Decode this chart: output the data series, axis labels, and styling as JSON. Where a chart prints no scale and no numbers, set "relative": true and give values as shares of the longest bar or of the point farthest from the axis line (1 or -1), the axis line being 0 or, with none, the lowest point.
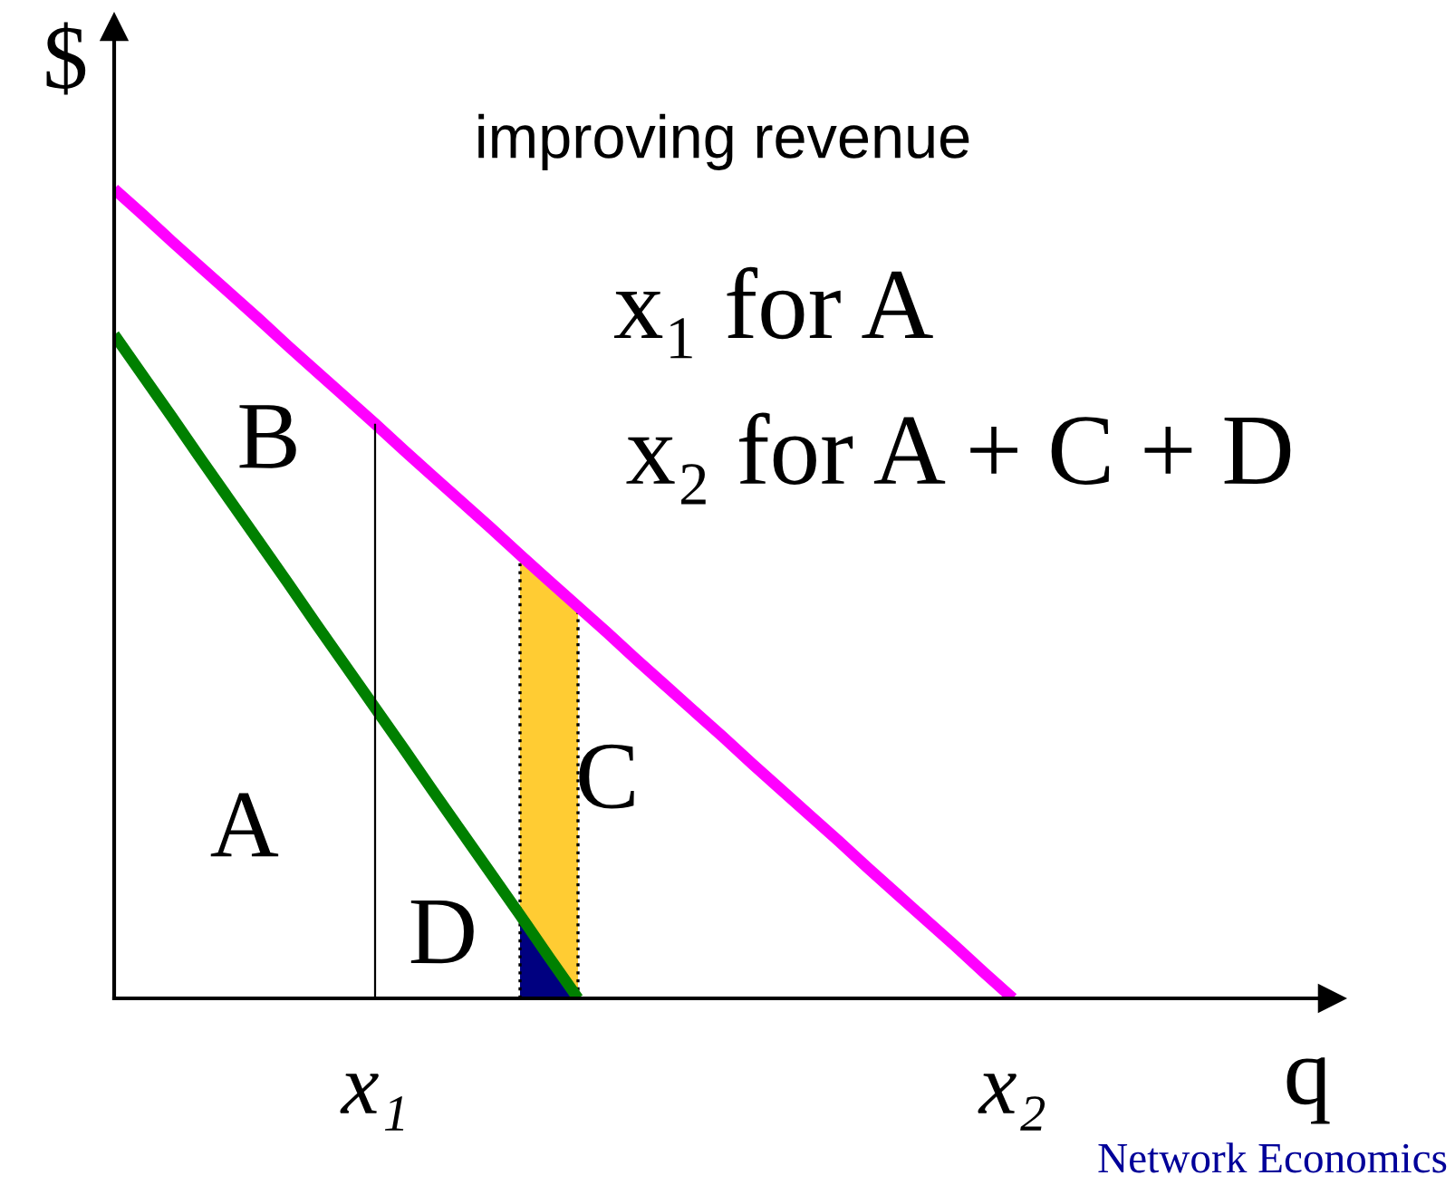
{
  "chart_data": {
    "type": "line",
    "relative": true,
    "title": "improving revenue",
    "xlabel": "q",
    "ylabel": "$",
    "categories": [
      null,
      null,
      null,
      null,
      null,
      null,
      null,
      null,
      null,
      "x₁",
      null,
      null,
      null,
      null,
      null,
      null,
      null,
      null,
      null,
      null,
      null,
      null,
      null,
      null,
      null,
      null,
      null,
      null,
      null,
      null,
      null,
      "x₂",
      null,
      null,
      null,
      null,
      null,
      null,
      null,
      null,
      null,
      null
    ],
    "series": [
      {
        "type": "area",
        "color": "#ffcc33",
        "line_style": "dotted",
        "values": [
          null,
          null,
          null,
          null,
          null,
          null,
          null,
          null,
          null,
          null,
          null,
          null,
          null,
          null,
          0.548,
          0.516,
          0.484,
          null,
          null,
          null,
          null,
          null,
          null,
          null,
          null,
          null,
          null,
          null,
          null,
          null,
          null,
          null,
          null,
          null,
          null,
          null,
          null,
          null,
          null,
          null,
          null,
          null
        ]
      },
      {
        "type": "area",
        "color": "#000080",
        "values": [
          null,
          null,
          null,
          null,
          null,
          null,
          null,
          null,
          null,
          null,
          null,
          null,
          null,
          null,
          0.103,
          0.051,
          0,
          null,
          null,
          null,
          null,
          null,
          null,
          null,
          null,
          null,
          null,
          null,
          null,
          null,
          null,
          null,
          null,
          null,
          null,
          null,
          null,
          null,
          null,
          null,
          null,
          null
        ]
      },
      {
        "color": "#ff00ff",
        "values": [
          1,
          0.968,
          0.935,
          0.903,
          0.871,
          0.839,
          0.806,
          0.774,
          0.742,
          0.71,
          0.677,
          0.645,
          0.613,
          0.581,
          0.548,
          0.516,
          0.484,
          0.452,
          0.419,
          0.387,
          0.355,
          0.323,
          0.29,
          0.258,
          0.226,
          0.194,
          0.161,
          0.129,
          0.097,
          0.065,
          0.032,
          0,
          null,
          null,
          null,
          null,
          null,
          null,
          null,
          null,
          null,
          null
        ]
      },
      {
        "color": "#008000",
        "values": [
          0.82,
          0.769,
          0.718,
          0.666,
          0.615,
          0.564,
          0.513,
          0.461,
          0.41,
          0.359,
          0.308,
          0.256,
          0.205,
          0.154,
          0.103,
          0.051,
          0,
          null,
          null,
          null,
          null,
          null,
          null,
          null,
          null,
          null,
          null,
          null,
          null,
          null,
          null,
          null,
          null,
          null,
          null,
          null,
          null,
          null,
          null,
          null,
          null,
          null
        ]
      },
      {
        "type": "bar",
        "color": "#000000",
        "values": [
          null,
          null,
          null,
          null,
          null,
          null,
          null,
          null,
          null,
          0.71,
          null,
          null,
          null,
          null,
          null,
          null,
          null,
          null,
          null,
          null,
          null,
          null,
          null,
          null,
          null,
          null,
          null,
          null,
          null,
          null,
          null,
          null,
          null,
          null,
          null,
          null,
          null,
          null,
          null,
          null,
          null,
          null
        ]
      }
    ],
    "annotations": [
      "B",
      "A",
      "C",
      "D",
      "x₁ for A",
      "x₂ for A + C + D",
      "Network Economics"
    ],
    "grid": false,
    "legend": false
  }
}
